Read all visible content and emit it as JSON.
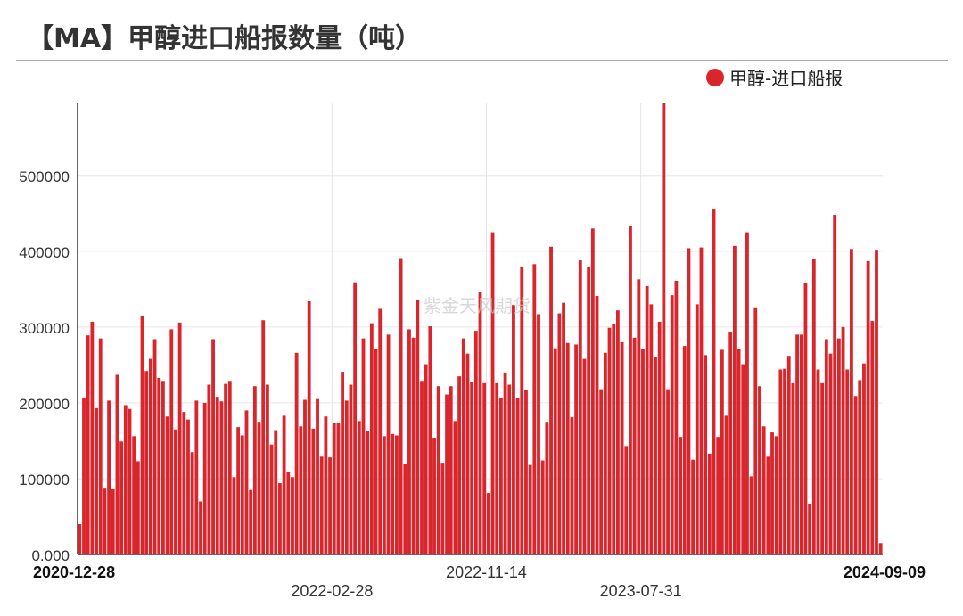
{
  "title": "【MA】甲醇进口船报数量（吨）",
  "watermark": "紫金天风期货",
  "colors": {
    "bar": "#d9262c",
    "grid": "#e6e6e6",
    "axis": "#333333"
  },
  "chart_data": {
    "type": "bar",
    "legend_position": "top-right",
    "grid": true,
    "x_start": "2020-12-28",
    "x_end": "2024-09-09",
    "x_tick_labels": [
      {
        "label": "2020-12-28",
        "bold": true,
        "row": 1
      },
      {
        "label": "2022-02-28",
        "bold": false,
        "row": 2
      },
      {
        "label": "2022-11-14",
        "bold": false,
        "row": 1
      },
      {
        "label": "2023-07-31",
        "bold": false,
        "row": 2
      },
      {
        "label": "2024-09-09",
        "bold": true,
        "row": 1
      }
    ],
    "y_tick_labels": [
      "0.000",
      "100000",
      "200000",
      "300000",
      "400000",
      "500000"
    ],
    "y_ticks": [
      0,
      100000,
      200000,
      300000,
      400000,
      500000
    ],
    "ylim": [
      0,
      595000
    ],
    "series": [
      {
        "name": "甲醇-进口船报",
        "values": [
          40000,
          207000,
          289000,
          307000,
          193000,
          285000,
          88000,
          203000,
          86000,
          237000,
          149000,
          197000,
          192000,
          156000,
          123000,
          315000,
          242000,
          258000,
          284000,
          233000,
          229000,
          182000,
          297000,
          165000,
          306000,
          188000,
          178000,
          135000,
          203000,
          70000,
          200000,
          224000,
          284000,
          208000,
          202000,
          225000,
          229000,
          102000,
          168000,
          157000,
          190000,
          85000,
          222000,
          175000,
          309000,
          224000,
          145000,
          164000,
          94000,
          183000,
          109000,
          102000,
          266000,
          169000,
          204000,
          334000,
          166000,
          205000,
          129000,
          182000,
          128000,
          173000,
          173000,
          241000,
          203000,
          224000,
          359000,
          176000,
          285000,
          163000,
          305000,
          271000,
          324000,
          156000,
          290000,
          159000,
          157000,
          391000,
          120000,
          297000,
          286000,
          336000,
          229000,
          251000,
          301000,
          154000,
          222000,
          121000,
          211000,
          222000,
          176000,
          235000,
          285000,
          265000,
          227000,
          295000,
          346000,
          226000,
          81000,
          425000,
          226000,
          207000,
          240000,
          224000,
          329000,
          206000,
          380000,
          217000,
          118000,
          383000,
          317000,
          124000,
          175000,
          406000,
          272000,
          318000,
          332000,
          279000,
          181000,
          277000,
          388000,
          258000,
          380000,
          430000,
          341000,
          218000,
          266000,
          299000,
          304000,
          322000,
          280000,
          143000,
          434000,
          286000,
          363000,
          271000,
          354000,
          330000,
          260000,
          307000,
          595000,
          218000,
          342000,
          361000,
          155000,
          275000,
          404000,
          125000,
          330000,
          405000,
          263000,
          133000,
          455000,
          155000,
          270000,
          183000,
          294000,
          407000,
          271000,
          251000,
          425000,
          103000,
          326000,
          222000,
          169000,
          129000,
          161000,
          156000,
          244000,
          245000,
          262000,
          226000,
          290000,
          290000,
          358000,
          67000,
          390000,
          244000,
          226000,
          284000,
          265000,
          448000,
          285000,
          300000,
          244000,
          403000,
          209000,
          230000,
          252000,
          387000,
          308000,
          402000,
          15000
        ]
      }
    ]
  }
}
